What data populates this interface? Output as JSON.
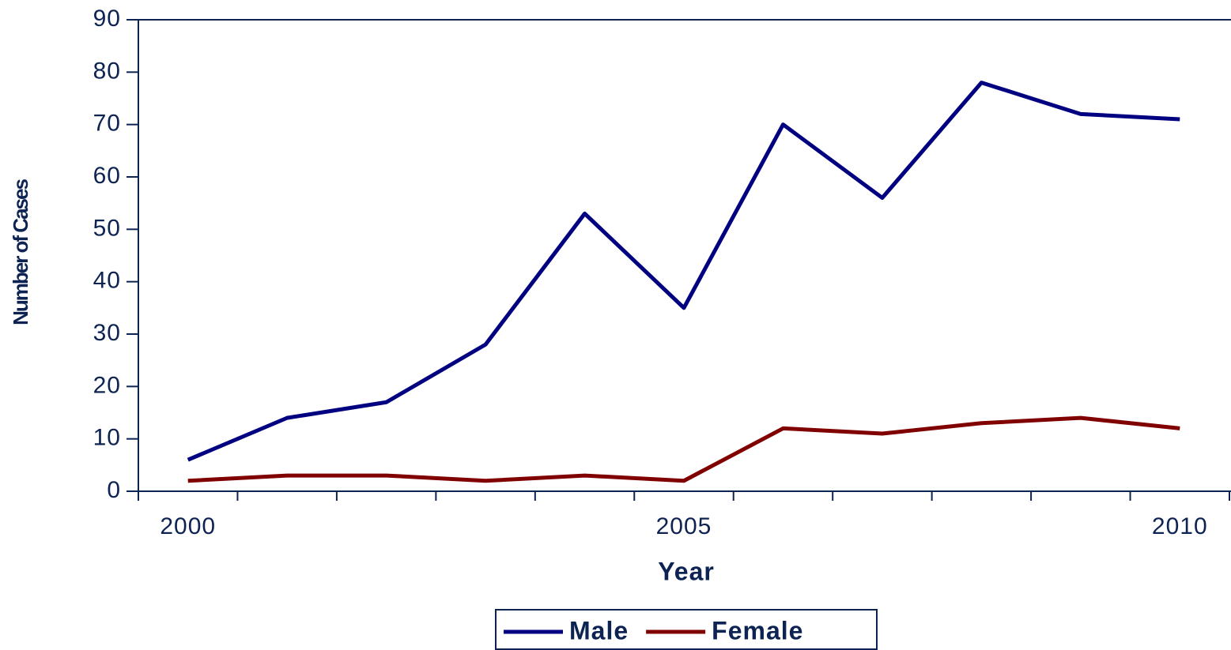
{
  "chart_data": {
    "type": "line",
    "x_label": "Year",
    "y_label": "Number of Cases",
    "categories": [
      2000,
      null,
      null,
      null,
      null,
      2005,
      null,
      null,
      null,
      null,
      2010
    ],
    "series": [
      {
        "name": "Male",
        "color": "#000080",
        "values": [
          6,
          14,
          17,
          28,
          53,
          35,
          70,
          56,
          78,
          72,
          71
        ]
      },
      {
        "name": "Female",
        "color": "#800000",
        "values": [
          2,
          3,
          3,
          2,
          3,
          2,
          12,
          11,
          13,
          14,
          12
        ]
      }
    ],
    "ylim": [
      0,
      90
    ],
    "yticks": [
      0,
      10,
      20,
      30,
      40,
      50,
      60,
      70,
      80,
      90
    ],
    "legend": "bottom"
  }
}
